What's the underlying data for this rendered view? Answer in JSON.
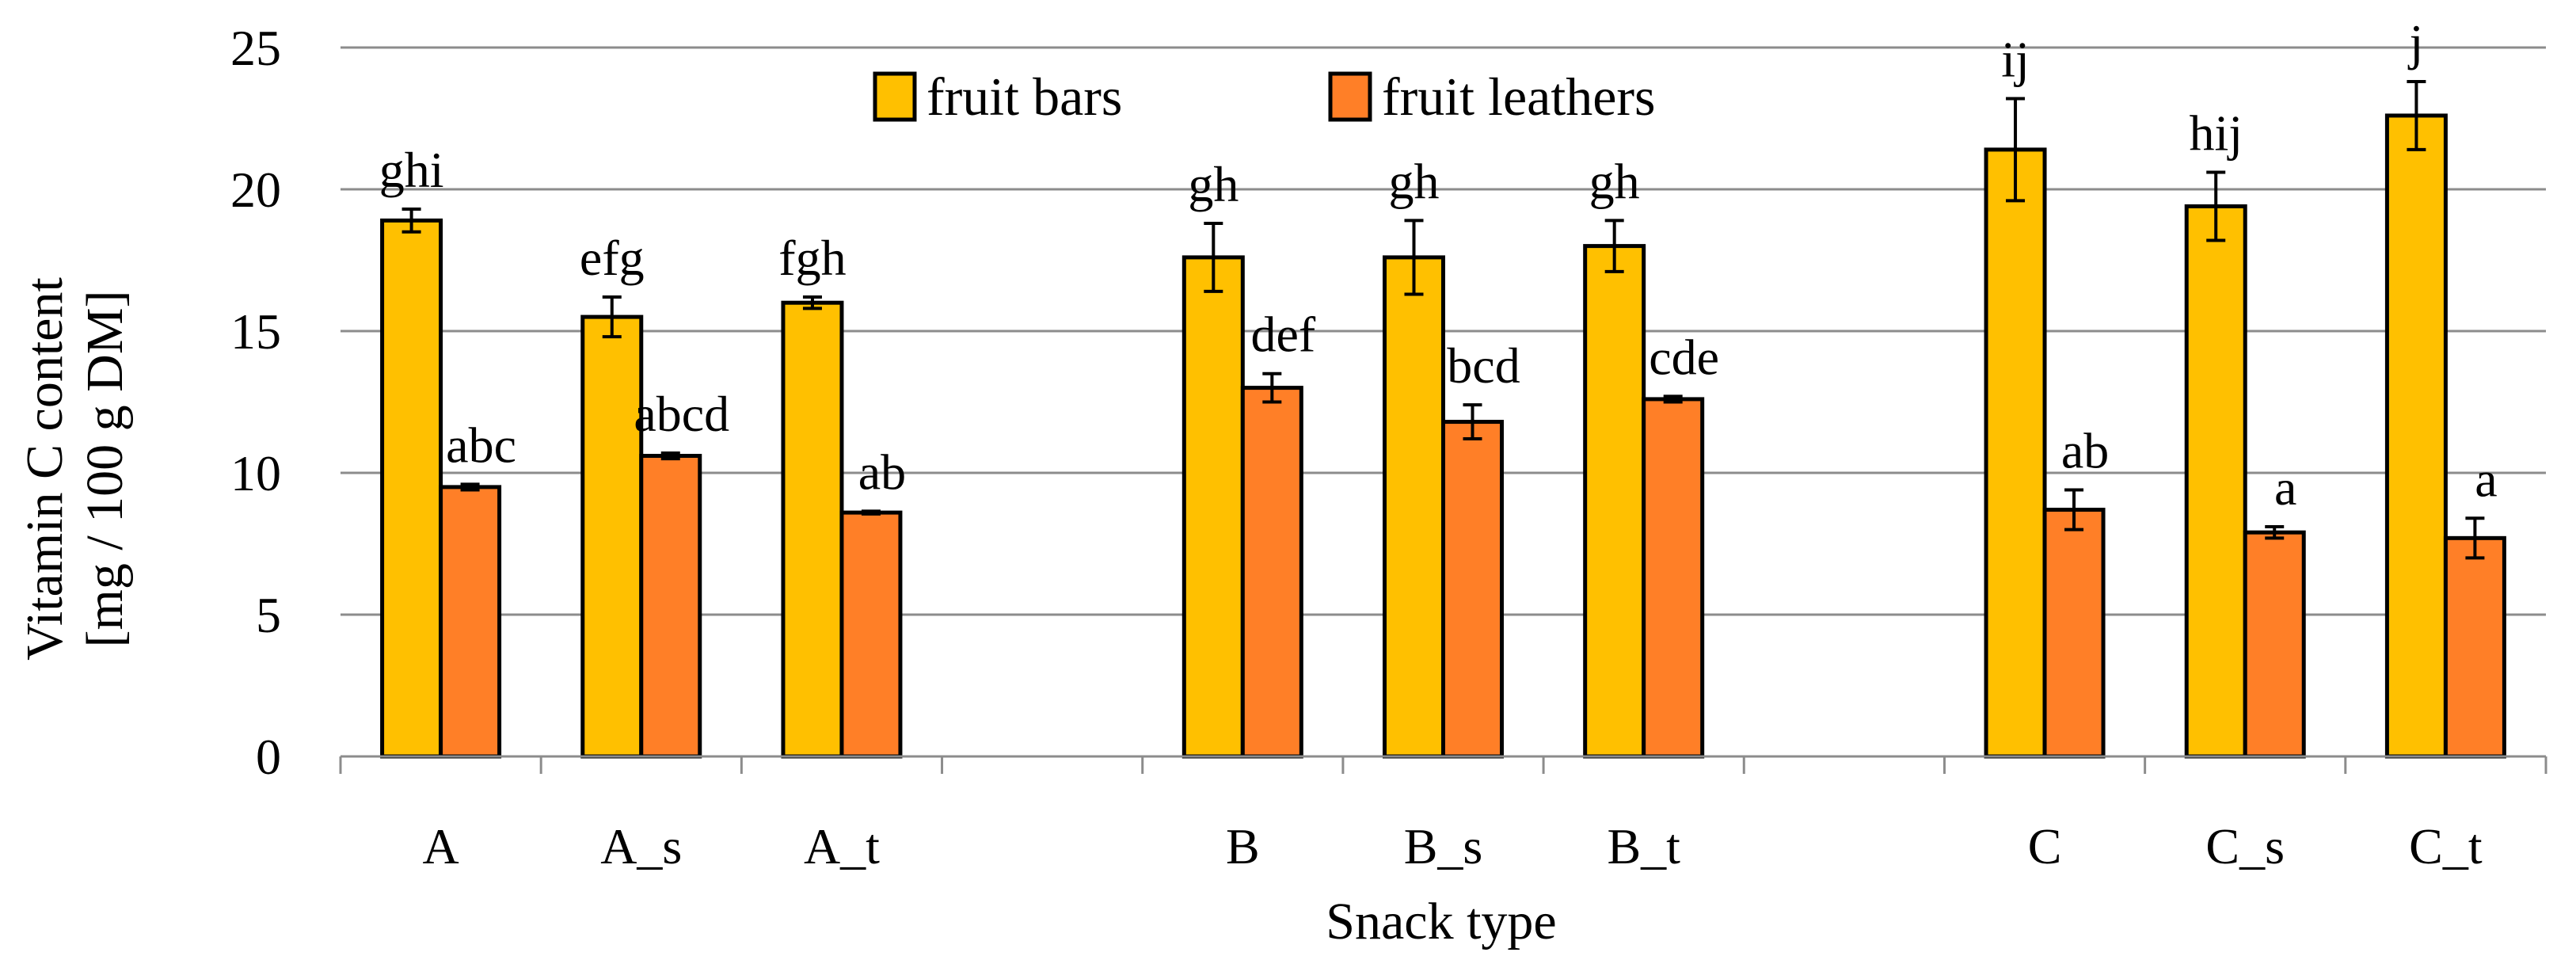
{
  "chart_data": {
    "type": "bar",
    "title": "",
    "xlabel": "Snack type",
    "ylabel_line1": "Vitamin C content",
    "ylabel_line2": "[mg / 100 g DM]",
    "ylim": [
      0,
      25
    ],
    "yticks": [
      0,
      5,
      10,
      15,
      20,
      25
    ],
    "grid": true,
    "legend_position": "top-center",
    "slots": [
      {
        "category": "A",
        "index": 0
      },
      {
        "category": "A_s",
        "index": 1
      },
      {
        "category": "A_t",
        "index": 2
      },
      {
        "category": "B",
        "index": 4
      },
      {
        "category": "B_s",
        "index": 5
      },
      {
        "category": "B_t",
        "index": 6
      },
      {
        "category": "C",
        "index": 8
      },
      {
        "category": "C_s",
        "index": 9
      },
      {
        "category": "C_t",
        "index": 10
      }
    ],
    "num_slots": 11,
    "categories": [
      "A",
      "A_s",
      "A_t",
      "B",
      "B_s",
      "B_t",
      "C",
      "C_s",
      "C_t"
    ],
    "series": [
      {
        "name": "fruit bars",
        "color": "#FFC000",
        "values": [
          18.9,
          15.5,
          16.0,
          17.6,
          17.6,
          18.0,
          21.4,
          19.4,
          22.6
        ],
        "errors": [
          0.4,
          0.7,
          0.2,
          1.2,
          1.3,
          0.9,
          1.8,
          1.2,
          1.2
        ],
        "letters": [
          "ghi",
          "efg",
          "fgh",
          "gh",
          "gh",
          "gh",
          "ij",
          "hij",
          "j"
        ]
      },
      {
        "name": "fruit leathers",
        "color": "#FF7F27",
        "values": [
          9.5,
          10.6,
          8.6,
          13.0,
          11.8,
          12.6,
          8.7,
          7.9,
          7.7
        ],
        "errors": [
          0.1,
          0.1,
          0.05,
          0.5,
          0.6,
          0.1,
          0.7,
          0.2,
          0.7
        ],
        "letters": [
          "abc",
          "abcd",
          "ab",
          "def",
          "bcd",
          "cde",
          "ab",
          "a",
          "a"
        ]
      }
    ]
  }
}
